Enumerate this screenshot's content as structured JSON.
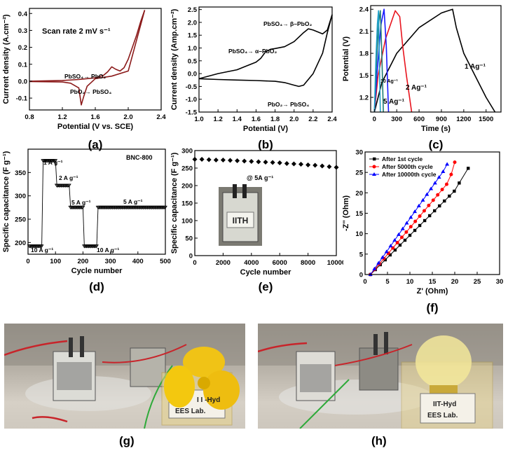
{
  "chart_data": [
    {
      "id": "a",
      "type": "line",
      "panel_label": "(a)",
      "xlabel": "Potential (V vs. SCE)",
      "ylabel": "Current density (A.cm⁻²)",
      "xlim": [
        0.8,
        2.4
      ],
      "ylim": [
        -0.17,
        0.43
      ],
      "xticks": [
        0.8,
        1.2,
        1.6,
        2.0,
        2.4
      ],
      "yticks": [
        -0.1,
        0.0,
        0.1,
        0.2,
        0.3,
        0.4
      ],
      "xtick_labels": [
        "0.8",
        "1.2",
        "1.6",
        "2.0",
        "2.4"
      ],
      "ytick_labels": [
        "-0.1",
        "0.0",
        "0.1",
        "0.2",
        "0.3",
        "0.4"
      ],
      "color": "#8b1a1a",
      "annotations": [
        "Scan rate 2 mV s⁻¹",
        "PbSO₄→ PbO₂",
        "PbO₂→ PbSO₄"
      ],
      "series": [
        {
          "x": [
            0.8,
            1.2,
            1.4,
            1.5,
            1.6,
            1.7,
            1.75,
            1.8,
            1.85,
            1.9,
            1.95,
            2.0,
            2.05,
            2.1,
            2.15,
            2.2
          ],
          "y": [
            0.0,
            0.004,
            0.01,
            0.015,
            0.02,
            0.035,
            0.055,
            0.085,
            0.07,
            0.06,
            0.08,
            0.13,
            0.2,
            0.27,
            0.35,
            0.42
          ]
        },
        {
          "x": [
            2.2,
            2.0,
            1.8,
            1.6,
            1.5,
            1.46,
            1.43,
            1.4,
            1.3,
            1.2,
            0.8
          ],
          "y": [
            0.42,
            0.06,
            0.03,
            0.015,
            -0.03,
            -0.09,
            -0.14,
            -0.04,
            -0.012,
            -0.005,
            -0.002
          ]
        }
      ]
    },
    {
      "id": "b",
      "type": "line",
      "panel_label": "(b)",
      "xlabel": "Potential (V)",
      "ylabel": "Current density (Amp.cm⁻²)",
      "xlim": [
        1.0,
        2.4
      ],
      "ylim": [
        -1.5,
        2.6
      ],
      "xticks": [
        1.0,
        1.2,
        1.4,
        1.6,
        1.8,
        2.0,
        2.2,
        2.4
      ],
      "yticks": [
        -1.5,
        -1.0,
        -0.5,
        0.0,
        0.5,
        1.0,
        1.5,
        2.0,
        2.5
      ],
      "xtick_labels": [
        "1.0",
        "1.2",
        "1.4",
        "1.6",
        "1.8",
        "2.0",
        "2.2",
        "2.4"
      ],
      "ytick_labels": [
        "-1.5",
        "-1.0",
        "-0.5",
        "0.0",
        "0.5",
        "1.0",
        "1.5",
        "2.0",
        "2.5"
      ],
      "color": "#000000",
      "annotations": [
        "PbSO₄→ β–PbO₂",
        "PbSO₄→ α–PbO₂",
        "PbO₂→ PbSO₄"
      ],
      "series": [
        {
          "x": [
            1.0,
            1.2,
            1.4,
            1.5,
            1.6,
            1.65,
            1.7,
            1.75,
            1.8,
            1.9,
            2.0,
            2.1,
            2.15,
            2.2,
            2.3,
            2.35,
            2.4
          ],
          "y": [
            -0.2,
            0.0,
            0.15,
            0.3,
            0.45,
            0.6,
            0.85,
            0.95,
            0.98,
            1.05,
            1.25,
            1.6,
            1.75,
            1.7,
            1.55,
            1.7,
            2.3
          ]
        },
        {
          "x": [
            2.4,
            2.35,
            2.3,
            2.2,
            2.1,
            2.05,
            2.0,
            1.9,
            1.8,
            1.6,
            1.4,
            1.2,
            1.0
          ],
          "y": [
            2.3,
            1.6,
            0.8,
            0.0,
            -0.45,
            -0.5,
            -0.45,
            -0.35,
            -0.3,
            -0.27,
            -0.25,
            -0.23,
            -0.2
          ]
        }
      ]
    },
    {
      "id": "c",
      "type": "line",
      "panel_label": "(c)",
      "xlabel": "Time (s)",
      "ylabel": "Potential (V)",
      "xlim": [
        -50,
        1700
      ],
      "ylim": [
        1.0,
        2.45
      ],
      "xticks": [
        0,
        300,
        600,
        900,
        1200,
        1500
      ],
      "yticks": [
        1.2,
        1.5,
        1.8,
        2.1,
        2.4
      ],
      "xtick_labels": [
        "0",
        "300",
        "600",
        "900",
        "1200",
        "1500"
      ],
      "ytick_labels": [
        "1.2",
        "1.5",
        "1.8",
        "2.1",
        "2.4"
      ],
      "annotations": [
        "1 Ag⁻¹",
        "2 Ag⁻¹",
        "5 Ag⁻¹",
        "10 Ag⁻¹"
      ],
      "series": [
        {
          "color": "#000000",
          "x": [
            0,
            100,
            300,
            600,
            900,
            1050,
            1100,
            1200,
            1350,
            1500,
            1620
          ],
          "y": [
            1.0,
            1.4,
            1.8,
            2.15,
            2.35,
            2.4,
            2.15,
            1.8,
            1.5,
            1.2,
            1.0
          ]
        },
        {
          "color": "#e8141e",
          "x": [
            0,
            50,
            150,
            280,
            340,
            380,
            430,
            500
          ],
          "y": [
            1.0,
            1.5,
            2.0,
            2.38,
            2.3,
            1.9,
            1.5,
            1.0
          ]
        },
        {
          "color": "#1a1aff",
          "x": [
            0,
            40,
            90,
            130,
            160,
            190
          ],
          "y": [
            1.0,
            1.6,
            2.2,
            2.4,
            1.9,
            1.0
          ]
        },
        {
          "color": "#1e7b76",
          "x": [
            0,
            25,
            55,
            80,
            100,
            120
          ],
          "y": [
            1.0,
            1.6,
            2.2,
            2.38,
            1.8,
            1.0
          ]
        },
        {
          "color": "#1ea0c8",
          "x": [
            0,
            20,
            40,
            55,
            65,
            80
          ],
          "y": [
            1.0,
            1.7,
            2.2,
            2.38,
            1.8,
            1.0
          ]
        }
      ]
    },
    {
      "id": "d",
      "type": "scatter",
      "panel_label": "(d)",
      "title": "BNC-800",
      "xlabel": "Cycle number",
      "ylabel": "Specific capacitance (F g⁻¹)",
      "xlim": [
        0,
        500
      ],
      "ylim": [
        175,
        400
      ],
      "xticks": [
        0,
        100,
        200,
        300,
        400,
        500
      ],
      "yticks": [
        200,
        250,
        300,
        350
      ],
      "xtick_labels": [
        "0",
        "100",
        "200",
        "300",
        "400",
        "500"
      ],
      "ytick_labels": [
        "200",
        "250",
        "300",
        "350"
      ],
      "color": "#000000",
      "annotations": [
        "1 A g⁻¹",
        "2 A g⁻¹",
        "5 A g⁻¹",
        "10 A g⁻¹",
        "5 A g⁻¹",
        "10 A g⁻¹"
      ],
      "segments": [
        {
          "x_start": 5,
          "x_end": 50,
          "y": 192
        },
        {
          "x_start": 55,
          "x_end": 100,
          "y": 375
        },
        {
          "x_start": 105,
          "x_end": 150,
          "y": 322
        },
        {
          "x_start": 155,
          "x_end": 200,
          "y": 275
        },
        {
          "x_start": 205,
          "x_end": 250,
          "y": 192
        },
        {
          "x_start": 255,
          "x_end": 500,
          "y": 275
        }
      ]
    },
    {
      "id": "e",
      "type": "scatter",
      "panel_label": "(e)",
      "xlabel": "Cycle number",
      "ylabel": "Specific capacitance (F g⁻¹)",
      "xlim": [
        0,
        10000
      ],
      "ylim": [
        0,
        300
      ],
      "xticks": [
        0,
        2000,
        4000,
        6000,
        8000,
        10000
      ],
      "yticks": [
        0,
        50,
        100,
        150,
        200,
        250,
        300
      ],
      "xtick_labels": [
        "0",
        "2000",
        "4000",
        "6000",
        "8000",
        "10000"
      ],
      "ytick_labels": [
        "0",
        "50",
        "100",
        "150",
        "200",
        "250",
        "300"
      ],
      "color": "#000000",
      "annotations": [
        "@ 5A g⁻¹"
      ],
      "inset_text": "IITH",
      "x": [
        0,
        500,
        1000,
        1500,
        2000,
        2500,
        3000,
        3500,
        4000,
        4500,
        5000,
        5500,
        6000,
        6500,
        7000,
        7500,
        8000,
        8500,
        9000,
        9500,
        10000
      ],
      "y": [
        275,
        275,
        274,
        273,
        273,
        272,
        271,
        270,
        269,
        268,
        267,
        266,
        265,
        263,
        262,
        261,
        259,
        258,
        256,
        254,
        252
      ]
    },
    {
      "id": "f",
      "type": "scatter",
      "panel_label": "(f)",
      "xlabel": "Z' (Ohm)",
      "ylabel": "-Z'' (Ohm)",
      "xlim": [
        0,
        30
      ],
      "ylim": [
        0,
        30
      ],
      "xticks": [
        0,
        5,
        10,
        15,
        20,
        25,
        30
      ],
      "yticks": [
        0,
        5,
        10,
        15,
        20,
        25,
        30
      ],
      "xtick_labels": [
        "0",
        "5",
        "10",
        "15",
        "20",
        "25",
        "30"
      ],
      "ytick_labels": [
        "0",
        "5",
        "10",
        "15",
        "20",
        "25",
        "30"
      ],
      "legend_position": "top-left",
      "series": [
        {
          "name": "After 1st cycle",
          "marker": "square",
          "color": "#000000",
          "x": [
            1.2,
            2.3,
            3.4,
            4.5,
            5.6,
            6.7,
            7.8,
            8.9,
            10.0,
            11.1,
            12.2,
            13.3,
            14.4,
            15.5,
            16.6,
            17.7,
            18.8,
            19.9,
            21.0,
            23.0
          ],
          "y": [
            0.0,
            1.2,
            2.4,
            3.6,
            4.8,
            6.0,
            7.2,
            8.4,
            9.6,
            10.8,
            12.0,
            13.2,
            14.4,
            15.6,
            16.8,
            18.0,
            19.2,
            20.4,
            22.4,
            26.0
          ]
        },
        {
          "name": "After 5000th cycle",
          "marker": "circle",
          "color": "#ff0000",
          "x": [
            1.2,
            2.2,
            3.2,
            4.2,
            5.2,
            6.2,
            7.2,
            8.2,
            9.2,
            10.2,
            11.2,
            12.2,
            13.2,
            14.2,
            15.2,
            16.2,
            17.2,
            18.2,
            19.2,
            20.0
          ],
          "y": [
            0.0,
            1.3,
            2.6,
            3.9,
            5.2,
            6.5,
            7.8,
            9.1,
            10.4,
            11.7,
            13.0,
            14.3,
            15.6,
            16.9,
            18.2,
            19.5,
            20.8,
            22.1,
            24.5,
            27.5
          ]
        },
        {
          "name": "After 10000th cycle",
          "marker": "triangle",
          "color": "#0000ff",
          "x": [
            1.2,
            2.1,
            3.0,
            3.9,
            4.8,
            5.7,
            6.6,
            7.5,
            8.4,
            9.3,
            10.2,
            11.1,
            12.0,
            12.9,
            13.8,
            14.7,
            15.6,
            16.5,
            17.4,
            18.3
          ],
          "y": [
            0.0,
            1.4,
            2.8,
            4.2,
            5.6,
            7.0,
            8.4,
            9.8,
            11.2,
            12.6,
            14.0,
            15.4,
            16.8,
            18.2,
            19.6,
            21.0,
            22.4,
            23.8,
            25.2,
            27.0
          ]
        }
      ]
    }
  ],
  "photos": [
    {
      "id": "g",
      "panel_label": "(g)",
      "sign_line1": "I I -Hyd",
      "sign_line2": "EES Lab."
    },
    {
      "id": "h",
      "panel_label": "(h)",
      "sign_line1": "IIT-Hyd",
      "sign_line2": "EES Lab."
    }
  ]
}
